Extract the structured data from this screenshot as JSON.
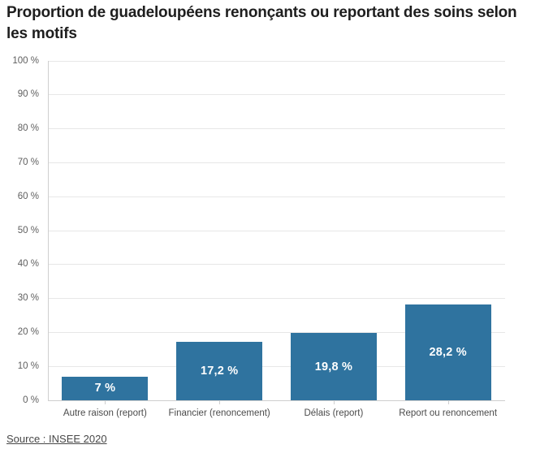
{
  "title": "Proportion de guadeloupéens renonçants ou reportant des soins selon les motifs",
  "source_link": "Source : INSEE 2020",
  "chart_data": {
    "type": "bar",
    "title": "Proportion de guadeloupéens renonçants ou reportant des soins selon les motifs",
    "categories": [
      "Autre raison (report)",
      "Financier (renoncement)",
      "Délais (report)",
      "Report ou renoncement"
    ],
    "values": [
      7,
      17.2,
      19.8,
      28.2
    ],
    "value_labels": [
      "7 %",
      "17,2 %",
      "19,8 %",
      "28,2 %"
    ],
    "xlabel": "",
    "ylabel": "",
    "ylim": [
      0,
      100
    ],
    "ytick_step": 10,
    "ytick_labels": [
      "0 %",
      "10 %",
      "20 %",
      "30 %",
      "40 %",
      "50 %",
      "60 %",
      "70 %",
      "80 %",
      "90 %",
      "100 %"
    ],
    "grid": true,
    "legend": false,
    "source": "Source : INSEE 2020"
  },
  "colors": {
    "bar": "#2f739f",
    "value_label": "#ffffff",
    "title_text": "#1e1e1e",
    "axis_text": "#5f5f5f",
    "category_text": "#4b4b4b",
    "gridline": "#e7e7e7",
    "axis_line": "#cfcfcf",
    "background": "#ffffff"
  }
}
